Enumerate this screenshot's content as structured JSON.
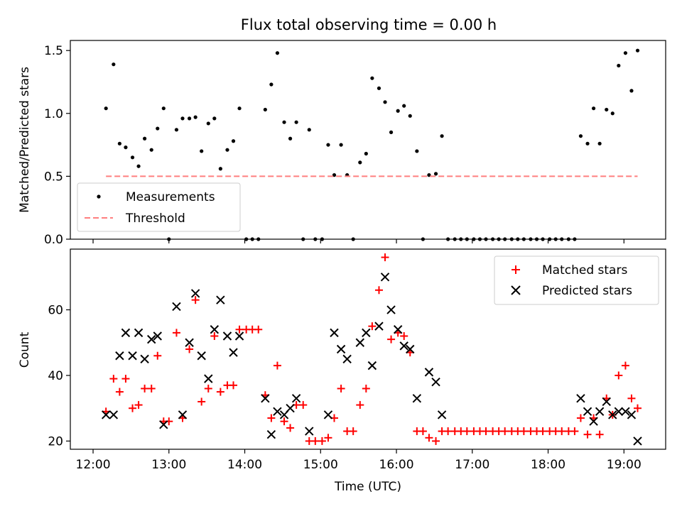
{
  "figure": {
    "title": "Flux total observing time = 0.00 h"
  },
  "colors": {
    "measurements": "#000000",
    "threshold": "#ff7f7f",
    "matched": "#ff0000",
    "predicted": "#000000"
  },
  "chart_data": [
    {
      "type": "scatter",
      "title": "Flux total observing time = 0.00 h",
      "xlabel": "",
      "ylabel": "Matched/Predicted stars",
      "x_unit": "hours (UTC)",
      "xlim": [
        11.7,
        19.55
      ],
      "ylim": [
        0,
        1.58
      ],
      "yticks": [
        0.0,
        0.5,
        1.0,
        1.5
      ],
      "ytick_labels": [
        "0.0",
        "0.5",
        "1.0",
        "1.5"
      ],
      "xtick_values": [
        12,
        13,
        14,
        15,
        16,
        17,
        18,
        19
      ],
      "grid": false,
      "legend": {
        "placement": "lower-left",
        "entries": [
          "Measurements",
          "Threshold"
        ]
      },
      "series": [
        {
          "name": "Measurements",
          "marker": "dot",
          "points": [
            [
              12.17,
              1.04
            ],
            [
              12.27,
              1.39
            ],
            [
              12.35,
              0.76
            ],
            [
              12.43,
              0.73
            ],
            [
              12.52,
              0.65
            ],
            [
              12.6,
              0.58
            ],
            [
              12.68,
              0.8
            ],
            [
              12.77,
              0.71
            ],
            [
              12.85,
              0.88
            ],
            [
              12.93,
              1.04
            ],
            [
              13.0,
              0.0
            ],
            [
              13.1,
              0.87
            ],
            [
              13.18,
              0.96
            ],
            [
              13.27,
              0.96
            ],
            [
              13.35,
              0.97
            ],
            [
              13.43,
              0.7
            ],
            [
              13.52,
              0.92
            ],
            [
              13.6,
              0.96
            ],
            [
              13.68,
              0.56
            ],
            [
              13.77,
              0.71
            ],
            [
              13.85,
              0.78
            ],
            [
              13.93,
              1.04
            ],
            [
              14.02,
              0.0
            ],
            [
              14.1,
              0.0
            ],
            [
              14.18,
              0.0
            ],
            [
              14.27,
              1.03
            ],
            [
              14.35,
              1.23
            ],
            [
              14.43,
              1.48
            ],
            [
              14.52,
              0.93
            ],
            [
              14.6,
              0.8
            ],
            [
              14.68,
              0.93
            ],
            [
              14.77,
              0.0
            ],
            [
              14.85,
              0.87
            ],
            [
              14.93,
              0.0
            ],
            [
              15.02,
              0.0
            ],
            [
              15.1,
              0.75
            ],
            [
              15.18,
              0.51
            ],
            [
              15.27,
              0.75
            ],
            [
              15.35,
              0.51
            ],
            [
              15.43,
              0.0
            ],
            [
              15.52,
              0.61
            ],
            [
              15.6,
              0.68
            ],
            [
              15.68,
              1.28
            ],
            [
              15.77,
              1.2
            ],
            [
              15.85,
              1.09
            ],
            [
              15.93,
              0.85
            ],
            [
              16.02,
              1.02
            ],
            [
              16.1,
              1.06
            ],
            [
              16.18,
              0.98
            ],
            [
              16.27,
              0.7
            ],
            [
              16.35,
              0.0
            ],
            [
              16.43,
              0.51
            ],
            [
              16.52,
              0.52
            ],
            [
              16.6,
              0.82
            ],
            [
              16.68,
              0.0
            ],
            [
              16.77,
              0.0
            ],
            [
              16.85,
              0.0
            ],
            [
              16.93,
              0.0
            ],
            [
              17.02,
              0.0
            ],
            [
              17.1,
              0.0
            ],
            [
              17.18,
              0.0
            ],
            [
              17.27,
              0.0
            ],
            [
              17.35,
              0.0
            ],
            [
              17.43,
              0.0
            ],
            [
              17.52,
              0.0
            ],
            [
              17.6,
              0.0
            ],
            [
              17.68,
              0.0
            ],
            [
              17.77,
              0.0
            ],
            [
              17.85,
              0.0
            ],
            [
              17.93,
              0.0
            ],
            [
              18.02,
              0.0
            ],
            [
              18.1,
              0.0
            ],
            [
              18.18,
              0.0
            ],
            [
              18.27,
              0.0
            ],
            [
              18.35,
              0.0
            ],
            [
              18.43,
              0.82
            ],
            [
              18.52,
              0.76
            ],
            [
              18.6,
              1.04
            ],
            [
              18.68,
              0.76
            ],
            [
              18.77,
              1.03
            ],
            [
              18.85,
              1.0
            ],
            [
              18.93,
              1.38
            ],
            [
              19.02,
              1.48
            ],
            [
              19.1,
              1.18
            ],
            [
              19.18,
              1.5
            ]
          ]
        },
        {
          "name": "Threshold",
          "marker": "dashed-line",
          "points": [
            [
              12.17,
              0.5
            ],
            [
              19.18,
              0.5
            ]
          ]
        }
      ]
    },
    {
      "type": "scatter",
      "xlabel": "Time (UTC)",
      "ylabel": "Count",
      "x_unit": "hours (UTC)",
      "xlim": [
        11.7,
        19.55
      ],
      "ylim": [
        17.5,
        78.5
      ],
      "yticks": [
        20,
        40,
        60
      ],
      "ytick_labels": [
        "20",
        "40",
        "60"
      ],
      "xtick_values": [
        12,
        13,
        14,
        15,
        16,
        17,
        18,
        19
      ],
      "xtick_labels": [
        "12:00",
        "13:00",
        "14:00",
        "15:00",
        "16:00",
        "17:00",
        "18:00",
        "19:00"
      ],
      "grid": false,
      "legend": {
        "placement": "top-right",
        "entries": [
          "Matched stars",
          "Predicted stars"
        ]
      },
      "series": [
        {
          "name": "Matched stars",
          "marker": "plus",
          "points": [
            [
              12.17,
              29
            ],
            [
              12.27,
              39
            ],
            [
              12.35,
              35
            ],
            [
              12.43,
              39
            ],
            [
              12.52,
              30
            ],
            [
              12.6,
              31
            ],
            [
              12.68,
              36
            ],
            [
              12.77,
              36
            ],
            [
              12.85,
              46
            ],
            [
              12.93,
              26
            ],
            [
              13.0,
              26
            ],
            [
              13.1,
              53
            ],
            [
              13.18,
              27
            ],
            [
              13.27,
              48
            ],
            [
              13.35,
              63
            ],
            [
              13.43,
              32
            ],
            [
              13.52,
              36
            ],
            [
              13.6,
              52
            ],
            [
              13.68,
              35
            ],
            [
              13.77,
              37
            ],
            [
              13.85,
              37
            ],
            [
              13.93,
              54
            ],
            [
              14.02,
              54
            ],
            [
              14.1,
              54
            ],
            [
              14.18,
              54
            ],
            [
              14.27,
              34
            ],
            [
              14.35,
              27
            ],
            [
              14.43,
              43
            ],
            [
              14.52,
              26
            ],
            [
              14.6,
              24
            ],
            [
              14.68,
              31
            ],
            [
              14.77,
              31
            ],
            [
              14.85,
              20
            ],
            [
              14.93,
              20
            ],
            [
              15.02,
              20
            ],
            [
              15.1,
              21
            ],
            [
              15.18,
              27
            ],
            [
              15.27,
              36
            ],
            [
              15.35,
              23
            ],
            [
              15.43,
              23
            ],
            [
              15.52,
              31
            ],
            [
              15.6,
              36
            ],
            [
              15.68,
              55
            ],
            [
              15.77,
              66
            ],
            [
              15.85,
              76
            ],
            [
              15.93,
              51
            ],
            [
              16.02,
              53
            ],
            [
              16.1,
              52
            ],
            [
              16.18,
              47
            ],
            [
              16.27,
              23
            ],
            [
              16.35,
              23
            ],
            [
              16.43,
              21
            ],
            [
              16.52,
              20
            ],
            [
              16.6,
              23
            ],
            [
              16.68,
              23
            ],
            [
              16.77,
              23
            ],
            [
              16.85,
              23
            ],
            [
              16.93,
              23
            ],
            [
              17.02,
              23
            ],
            [
              17.1,
              23
            ],
            [
              17.18,
              23
            ],
            [
              17.27,
              23
            ],
            [
              17.35,
              23
            ],
            [
              17.43,
              23
            ],
            [
              17.52,
              23
            ],
            [
              17.6,
              23
            ],
            [
              17.68,
              23
            ],
            [
              17.77,
              23
            ],
            [
              17.85,
              23
            ],
            [
              17.93,
              23
            ],
            [
              18.02,
              23
            ],
            [
              18.1,
              23
            ],
            [
              18.18,
              23
            ],
            [
              18.27,
              23
            ],
            [
              18.35,
              23
            ],
            [
              18.43,
              27
            ],
            [
              18.52,
              22
            ],
            [
              18.6,
              27
            ],
            [
              18.68,
              22
            ],
            [
              18.77,
              33
            ],
            [
              18.85,
              28
            ],
            [
              18.93,
              40
            ],
            [
              19.02,
              43
            ],
            [
              19.1,
              33
            ],
            [
              19.18,
              30
            ]
          ]
        },
        {
          "name": "Predicted stars",
          "marker": "x",
          "points": [
            [
              12.17,
              28
            ],
            [
              12.27,
              28
            ],
            [
              12.35,
              46
            ],
            [
              12.43,
              53
            ],
            [
              12.52,
              46
            ],
            [
              12.6,
              53
            ],
            [
              12.68,
              45
            ],
            [
              12.77,
              51
            ],
            [
              12.85,
              52
            ],
            [
              12.93,
              25
            ],
            [
              13.1,
              61
            ],
            [
              13.18,
              28
            ],
            [
              13.27,
              50
            ],
            [
              13.35,
              65
            ],
            [
              13.43,
              46
            ],
            [
              13.52,
              39
            ],
            [
              13.6,
              54
            ],
            [
              13.68,
              63
            ],
            [
              13.77,
              52
            ],
            [
              13.85,
              47
            ],
            [
              13.93,
              52
            ],
            [
              14.27,
              33
            ],
            [
              14.35,
              22
            ],
            [
              14.43,
              29
            ],
            [
              14.52,
              28
            ],
            [
              14.6,
              30
            ],
            [
              14.68,
              33
            ],
            [
              14.85,
              23
            ],
            [
              15.1,
              28
            ],
            [
              15.18,
              53
            ],
            [
              15.27,
              48
            ],
            [
              15.35,
              45
            ],
            [
              15.52,
              50
            ],
            [
              15.6,
              53
            ],
            [
              15.68,
              43
            ],
            [
              15.77,
              55
            ],
            [
              15.85,
              70
            ],
            [
              15.93,
              60
            ],
            [
              16.02,
              54
            ],
            [
              16.1,
              49
            ],
            [
              16.18,
              48
            ],
            [
              16.27,
              33
            ],
            [
              16.43,
              41
            ],
            [
              16.52,
              38
            ],
            [
              16.6,
              28
            ],
            [
              18.43,
              33
            ],
            [
              18.52,
              29
            ],
            [
              18.6,
              26
            ],
            [
              18.68,
              29
            ],
            [
              18.77,
              32
            ],
            [
              18.85,
              28
            ],
            [
              18.93,
              29
            ],
            [
              19.02,
              29
            ],
            [
              19.1,
              28
            ],
            [
              19.18,
              20
            ]
          ]
        }
      ]
    }
  ]
}
